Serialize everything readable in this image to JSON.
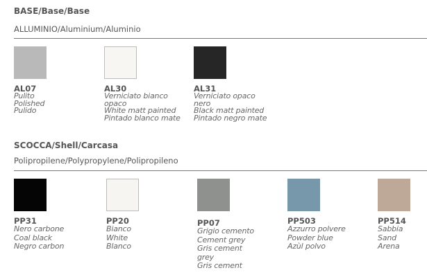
{
  "base": {
    "title": "BASE/Base/Base",
    "material": "ALLUMINIO/Aluminium/Aluminio",
    "finishes": [
      {
        "code": "AL07",
        "color": "#b9b9b9",
        "lines": [
          "Pulito",
          "Polished",
          "Pulido"
        ]
      },
      {
        "code": "AL30",
        "color": "#f7f6f2",
        "lines": [
          "Verniciato bianco",
          "opaco",
          "White matt painted",
          "Pintado blanco mate"
        ]
      },
      {
        "code": "AL31",
        "color": "#262626",
        "lines": [
          "Verniciato opaco",
          "nero",
          "Black matt painted",
          "Pintado negro mate"
        ]
      }
    ]
  },
  "shell": {
    "title": "SCOCCA/Shell/Carcasa",
    "material": "Polipropilene/Polypropylene/Polipropileno",
    "finishes": [
      {
        "code": "PP31",
        "color": "#050505",
        "lines": [
          "Nero carbone",
          "Coal black",
          "Negro carbon"
        ]
      },
      {
        "code": "PP20",
        "color": "#f6f5f1",
        "lines": [
          "Bianco",
          "White",
          "Blanco"
        ]
      },
      {
        "code": "PP07",
        "color": "#8e918e",
        "lines": [
          "Grigio cemento",
          "Cement grey",
          "Gris cement",
          "grey",
          "Gris cement"
        ]
      },
      {
        "code": "PP503",
        "color": "#7797ab",
        "lines": [
          "Azzurro polvere",
          "Powder blue",
          "Azùl polvo"
        ]
      },
      {
        "code": "PP514",
        "color": "#bea898",
        "lines": [
          "Sabbia",
          "Sand",
          "Arena"
        ]
      }
    ]
  }
}
